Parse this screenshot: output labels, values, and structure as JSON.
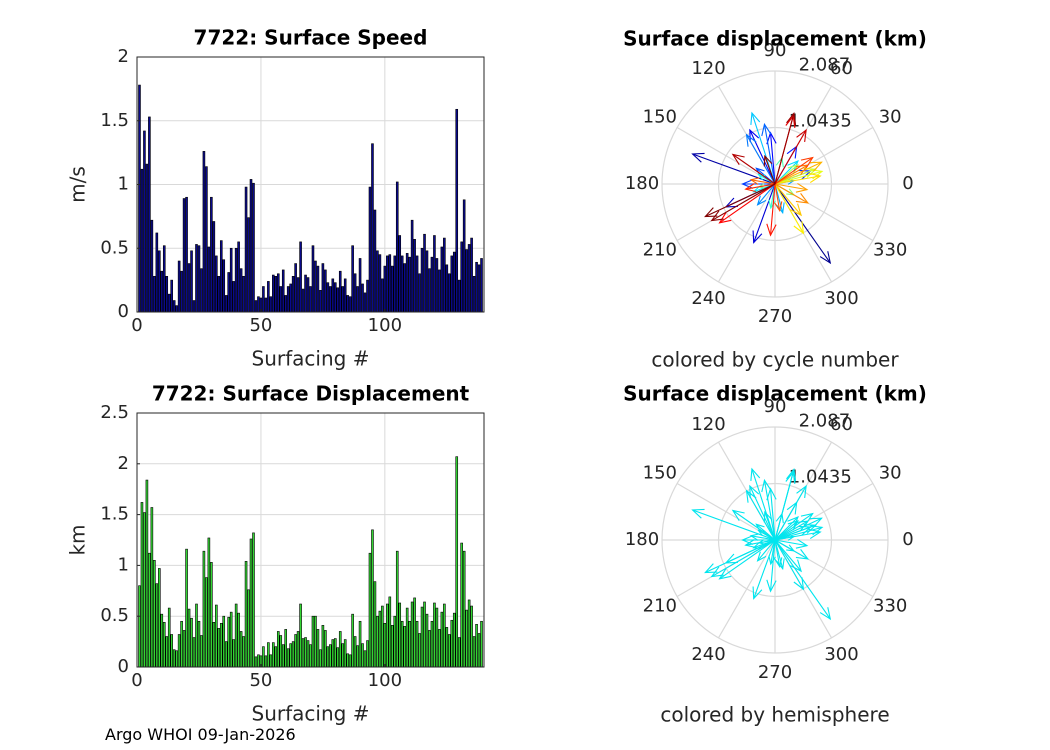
{
  "figure": {
    "footer": "Argo WHOI 09-Jan-2026"
  },
  "colors": {
    "speed_bar": "#0a0a8c",
    "disp_bar": "#33d633",
    "grid": "#d9d9d9",
    "axis": "#262626",
    "hemisphere": "#00e5ee"
  },
  "chart_data": [
    {
      "type": "bar",
      "title": "7722: Surface Speed",
      "xlabel": "Surfacing #",
      "ylabel": "m/s",
      "xlim": [
        0,
        140
      ],
      "ylim": [
        0,
        2
      ],
      "xticks": [
        "0",
        "50",
        "100"
      ],
      "yticks": [
        "0",
        "0.5",
        "1",
        "1.5",
        "2"
      ],
      "values": [
        1.78,
        1.12,
        1.42,
        1.16,
        1.53,
        0.72,
        0.28,
        0.62,
        0.48,
        0.32,
        0.52,
        0.28,
        0.14,
        0.25,
        0.09,
        0.05,
        0.4,
        0.32,
        0.89,
        0.9,
        0.38,
        0.48,
        0.09,
        0.53,
        0.52,
        0.34,
        1.26,
        1.14,
        0.51,
        0.9,
        0.71,
        0.44,
        0.28,
        0.56,
        0.41,
        0.13,
        0.31,
        0.5,
        0.24,
        0.5,
        0.55,
        0.34,
        0.28,
        0.98,
        0.74,
        1.04,
        1.01,
        0.09,
        0.12,
        0.11,
        0.2,
        0.11,
        0.24,
        0.12,
        0.29,
        0.28,
        0.3,
        0.2,
        0.33,
        0.13,
        0.2,
        0.22,
        0.28,
        0.38,
        0.27,
        0.55,
        0.18,
        0.29,
        0.27,
        0.2,
        0.52,
        0.4,
        0.36,
        0.17,
        0.38,
        0.33,
        0.23,
        0.2,
        0.26,
        0.23,
        0.19,
        0.32,
        0.2,
        0.26,
        0.13,
        0.12,
        0.52,
        0.3,
        0.2,
        0.42,
        0.22,
        0.15,
        0.25,
        0.98,
        1.32,
        0.8,
        0.48,
        0.45,
        0.26,
        0.36,
        0.44,
        0.45,
        0.36,
        0.44,
        1.02,
        0.6,
        0.44,
        0.38,
        0.46,
        0.43,
        0.72,
        0.57,
        0.44,
        0.3,
        0.5,
        0.61,
        0.48,
        0.34,
        0.43,
        0.6,
        0.42,
        0.33,
        0.51,
        0.58,
        0.37,
        0.3,
        0.44,
        0.47,
        1.59,
        0.25,
        0.55,
        0.88,
        0.49,
        0.53,
        0.58,
        0.28,
        0.39,
        0.37,
        0.42
      ]
    },
    {
      "type": "bar",
      "title": "7722: Surface Displacement",
      "xlabel": "Surfacing #",
      "ylabel": "km",
      "xlim": [
        0,
        140
      ],
      "ylim": [
        0,
        2.5
      ],
      "xticks": [
        "0",
        "50",
        "100"
      ],
      "yticks": [
        "0",
        "0.5",
        "1",
        "1.5",
        "2",
        "2.5"
      ],
      "values": [
        0.8,
        1.62,
        1.52,
        1.84,
        1.12,
        1.57,
        1.05,
        0.82,
        0.97,
        0.52,
        0.44,
        0.3,
        0.58,
        0.32,
        0.17,
        0.16,
        0.32,
        0.45,
        0.36,
        1.16,
        0.57,
        0.48,
        0.29,
        0.62,
        0.45,
        0.31,
        1.14,
        0.88,
        1.27,
        1.03,
        0.44,
        0.61,
        0.38,
        0.43,
        0.5,
        0.25,
        0.49,
        0.54,
        0.27,
        0.62,
        0.53,
        0.35,
        0.3,
        1.04,
        0.76,
        1.26,
        1.32,
        0.1,
        0.12,
        0.11,
        0.2,
        0.11,
        0.24,
        0.12,
        0.24,
        0.2,
        0.35,
        0.31,
        0.22,
        0.37,
        0.18,
        0.23,
        0.25,
        0.32,
        0.35,
        0.62,
        0.28,
        0.29,
        0.26,
        0.22,
        0.5,
        0.5,
        0.37,
        0.17,
        0.41,
        0.36,
        0.2,
        0.22,
        0.27,
        0.28,
        0.19,
        0.35,
        0.23,
        0.27,
        0.13,
        0.12,
        0.52,
        0.3,
        0.21,
        0.45,
        0.23,
        0.16,
        0.26,
        1.12,
        1.35,
        0.84,
        0.5,
        0.55,
        0.6,
        0.43,
        0.62,
        0.69,
        0.41,
        0.5,
        1.14,
        0.63,
        0.45,
        0.4,
        0.58,
        0.45,
        0.64,
        0.68,
        0.45,
        0.33,
        0.59,
        0.64,
        0.52,
        0.36,
        0.45,
        0.63,
        0.58,
        0.37,
        0.54,
        0.62,
        0.39,
        0.32,
        0.46,
        0.53,
        2.07,
        0.29,
        1.22,
        1.14,
        0.56,
        0.66,
        0.6,
        0.3,
        0.42,
        0.33,
        0.45
      ]
    },
    {
      "type": "polar",
      "title": "Surface displacement (km)",
      "caption": "colored by cycle number",
      "rmax": 2.087,
      "rlabels": [
        "1.0435",
        "2.087"
      ],
      "angle_labels": [
        "0",
        "30",
        "60",
        "90",
        "120",
        "150",
        "180",
        "210",
        "240",
        "270",
        "300",
        "330"
      ],
      "coloring": "cycle",
      "vectors": [
        {
          "angle": 305,
          "r": 1.78,
          "color": "#00008f"
        },
        {
          "angle": 160,
          "r": 1.62,
          "color": "#0000a6"
        },
        {
          "angle": 205,
          "r": 1.0,
          "color": "#0000bf"
        },
        {
          "angle": 250,
          "r": 1.15,
          "color": "#0000d6"
        },
        {
          "angle": 115,
          "r": 1.1,
          "color": "#0000f0"
        },
        {
          "angle": 95,
          "r": 0.95,
          "color": "#0000ff"
        },
        {
          "angle": 60,
          "r": 0.8,
          "color": "#0014ff"
        },
        {
          "angle": 20,
          "r": 0.7,
          "color": "#0028ff"
        },
        {
          "angle": 180,
          "r": 0.6,
          "color": "#003cff"
        },
        {
          "angle": 140,
          "r": 0.45,
          "color": "#0050ff"
        },
        {
          "angle": 100,
          "r": 1.12,
          "color": "#0064ff"
        },
        {
          "angle": 120,
          "r": 1.05,
          "color": "#0078ff"
        },
        {
          "angle": 230,
          "r": 0.5,
          "color": "#008cff"
        },
        {
          "angle": 10,
          "r": 0.35,
          "color": "#00a0ff"
        },
        {
          "angle": 285,
          "r": 0.55,
          "color": "#00b4ff"
        },
        {
          "angle": 108,
          "r": 1.38,
          "color": "#00c8ff"
        },
        {
          "angle": 45,
          "r": 0.6,
          "color": "#00dcff"
        },
        {
          "angle": 200,
          "r": 0.42,
          "color": "#00f0ff"
        },
        {
          "angle": 150,
          "r": 0.35,
          "color": "#14ffeb"
        },
        {
          "angle": 260,
          "r": 0.45,
          "color": "#32ffcd"
        },
        {
          "angle": 75,
          "r": 0.5,
          "color": "#50ffaf"
        },
        {
          "angle": 190,
          "r": 0.3,
          "color": "#6eff91"
        },
        {
          "angle": 330,
          "r": 0.4,
          "color": "#8cff73"
        },
        {
          "angle": 40,
          "r": 0.55,
          "color": "#aaff55"
        },
        {
          "angle": 20,
          "r": 0.8,
          "color": "#c8ff37"
        },
        {
          "angle": 15,
          "r": 0.9,
          "color": "#e6ff19"
        },
        {
          "angle": 300,
          "r": 1.05,
          "color": "#fff000"
        },
        {
          "angle": 10,
          "r": 0.85,
          "color": "#ffdc00"
        },
        {
          "angle": 310,
          "r": 0.75,
          "color": "#ffc800"
        },
        {
          "angle": 25,
          "r": 0.95,
          "color": "#ffb400"
        },
        {
          "angle": 350,
          "r": 0.6,
          "color": "#ffa000"
        },
        {
          "angle": 330,
          "r": 0.7,
          "color": "#ff8c00"
        },
        {
          "angle": 30,
          "r": 0.7,
          "color": "#ff7800"
        },
        {
          "angle": 170,
          "r": 0.45,
          "color": "#ff6400"
        },
        {
          "angle": 280,
          "r": 0.5,
          "color": "#ff5000"
        },
        {
          "angle": 35,
          "r": 0.85,
          "color": "#ff3c00"
        },
        {
          "angle": 190,
          "r": 0.55,
          "color": "#ff2800"
        },
        {
          "angle": 265,
          "r": 0.95,
          "color": "#ff1400"
        },
        {
          "angle": 215,
          "r": 1.25,
          "color": "#ff0000"
        },
        {
          "angle": 75,
          "r": 1.3,
          "color": "#e60000"
        },
        {
          "angle": 60,
          "r": 1.15,
          "color": "#cc0000"
        },
        {
          "angle": 145,
          "r": 0.95,
          "color": "#b30000"
        },
        {
          "angle": 75,
          "r": 1.35,
          "color": "#990000"
        },
        {
          "angle": 210,
          "r": 1.35,
          "color": "#8c0000"
        },
        {
          "angle": 205,
          "r": 1.42,
          "color": "#800000"
        },
        {
          "angle": 110,
          "r": 0.55,
          "color": "#800000"
        }
      ]
    },
    {
      "type": "polar",
      "title": "Surface displacement (km)",
      "caption": "colored by hemisphere",
      "rmax": 2.087,
      "rlabels": [
        "1.0435",
        "2.087"
      ],
      "angle_labels": [
        "0",
        "30",
        "60",
        "90",
        "120",
        "150",
        "180",
        "210",
        "240",
        "270",
        "300",
        "330"
      ],
      "coloring": "hemisphere",
      "vectors": [
        {
          "angle": 305,
          "r": 1.78
        },
        {
          "angle": 160,
          "r": 1.62
        },
        {
          "angle": 205,
          "r": 1.0
        },
        {
          "angle": 250,
          "r": 1.15
        },
        {
          "angle": 115,
          "r": 1.1
        },
        {
          "angle": 95,
          "r": 0.95
        },
        {
          "angle": 60,
          "r": 0.8
        },
        {
          "angle": 20,
          "r": 0.7
        },
        {
          "angle": 180,
          "r": 0.6
        },
        {
          "angle": 140,
          "r": 0.45
        },
        {
          "angle": 100,
          "r": 1.12
        },
        {
          "angle": 120,
          "r": 1.05
        },
        {
          "angle": 230,
          "r": 0.5
        },
        {
          "angle": 10,
          "r": 0.35
        },
        {
          "angle": 285,
          "r": 0.55
        },
        {
          "angle": 108,
          "r": 1.38
        },
        {
          "angle": 45,
          "r": 0.6
        },
        {
          "angle": 200,
          "r": 0.42
        },
        {
          "angle": 150,
          "r": 0.35
        },
        {
          "angle": 260,
          "r": 0.45
        },
        {
          "angle": 75,
          "r": 0.5
        },
        {
          "angle": 190,
          "r": 0.3
        },
        {
          "angle": 330,
          "r": 0.4
        },
        {
          "angle": 40,
          "r": 0.55
        },
        {
          "angle": 20,
          "r": 0.8
        },
        {
          "angle": 15,
          "r": 0.9
        },
        {
          "angle": 300,
          "r": 1.05
        },
        {
          "angle": 10,
          "r": 0.85
        },
        {
          "angle": 310,
          "r": 0.75
        },
        {
          "angle": 25,
          "r": 0.95
        },
        {
          "angle": 350,
          "r": 0.6
        },
        {
          "angle": 330,
          "r": 0.7
        },
        {
          "angle": 30,
          "r": 0.7
        },
        {
          "angle": 170,
          "r": 0.45
        },
        {
          "angle": 280,
          "r": 0.5
        },
        {
          "angle": 35,
          "r": 0.85
        },
        {
          "angle": 190,
          "r": 0.55
        },
        {
          "angle": 265,
          "r": 0.95
        },
        {
          "angle": 215,
          "r": 1.25
        },
        {
          "angle": 75,
          "r": 1.3
        },
        {
          "angle": 60,
          "r": 1.15
        },
        {
          "angle": 145,
          "r": 0.95
        },
        {
          "angle": 75,
          "r": 1.35
        },
        {
          "angle": 210,
          "r": 1.35
        },
        {
          "angle": 205,
          "r": 1.42
        },
        {
          "angle": 110,
          "r": 0.55
        }
      ]
    }
  ]
}
